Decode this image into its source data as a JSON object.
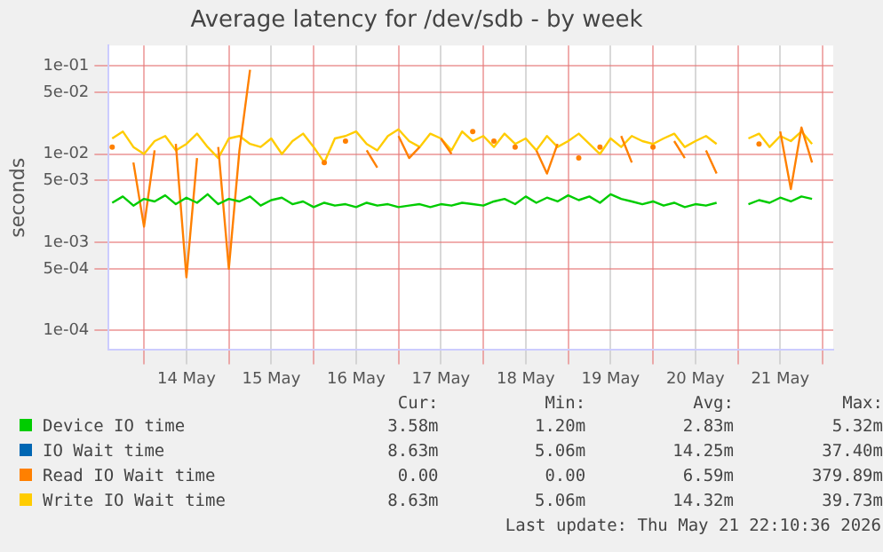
{
  "chart_data": {
    "type": "line",
    "title": "Average latency for /dev/sdb - by week",
    "ylabel": "seconds",
    "log": "y",
    "grid": true,
    "legend": "bottom",
    "marker": "none",
    "line_style": "solid",
    "x": [
      "2026-05-13T15:00",
      "2026-05-13T18:00",
      "2026-05-13T21:00",
      "2026-05-14T00:00",
      "2026-05-14T03:00",
      "2026-05-14T06:00",
      "2026-05-14T09:00",
      "2026-05-14T12:00",
      "2026-05-14T15:00",
      "2026-05-14T18:00",
      "2026-05-14T21:00",
      "2026-05-15T00:00",
      "2026-05-15T03:00",
      "2026-05-15T06:00",
      "2026-05-15T09:00",
      "2026-05-15T12:00",
      "2026-05-15T15:00",
      "2026-05-15T18:00",
      "2026-05-15T21:00",
      "2026-05-16T00:00",
      "2026-05-16T03:00",
      "2026-05-16T06:00",
      "2026-05-16T09:00",
      "2026-05-16T12:00",
      "2026-05-16T15:00",
      "2026-05-16T18:00",
      "2026-05-16T21:00",
      "2026-05-17T00:00",
      "2026-05-17T03:00",
      "2026-05-17T06:00",
      "2026-05-17T09:00",
      "2026-05-17T12:00",
      "2026-05-17T15:00",
      "2026-05-17T18:00",
      "2026-05-17T21:00",
      "2026-05-18T00:00",
      "2026-05-18T03:00",
      "2026-05-18T06:00",
      "2026-05-18T09:00",
      "2026-05-18T12:00",
      "2026-05-18T15:00",
      "2026-05-18T18:00",
      "2026-05-18T21:00",
      "2026-05-19T00:00",
      "2026-05-19T03:00",
      "2026-05-19T06:00",
      "2026-05-19T09:00",
      "2026-05-19T12:00",
      "2026-05-19T15:00",
      "2026-05-19T18:00",
      "2026-05-19T21:00",
      "2026-05-20T00:00",
      "2026-05-20T03:00",
      "2026-05-20T06:00",
      "2026-05-20T09:00",
      "2026-05-20T12:00",
      "2026-05-20T15:00",
      "2026-05-20T18:00",
      "2026-05-20T21:00",
      "2026-05-21T00:00",
      "2026-05-21T03:00",
      "2026-05-21T06:00",
      "2026-05-21T09:00",
      "2026-05-21T12:00",
      "2026-05-21T15:00",
      "2026-05-21T18:00",
      "2026-05-21T21:00"
    ],
    "xlim": [
      "2026-05-13T14:00",
      "2026-05-22T03:00"
    ],
    "xticks": [
      {
        "value": "2026-05-14T00:00",
        "label": null
      },
      {
        "value": "2026-05-14T12:00",
        "label": "14 May"
      },
      {
        "value": "2026-05-15T00:00",
        "label": null
      },
      {
        "value": "2026-05-15T12:00",
        "label": "15 May"
      },
      {
        "value": "2026-05-16T00:00",
        "label": null
      },
      {
        "value": "2026-05-16T12:00",
        "label": "16 May"
      },
      {
        "value": "2026-05-17T00:00",
        "label": null
      },
      {
        "value": "2026-05-17T12:00",
        "label": "17 May"
      },
      {
        "value": "2026-05-18T00:00",
        "label": null
      },
      {
        "value": "2026-05-18T12:00",
        "label": "18 May"
      },
      {
        "value": "2026-05-19T00:00",
        "label": null
      },
      {
        "value": "2026-05-19T12:00",
        "label": "19 May"
      },
      {
        "value": "2026-05-20T00:00",
        "label": null
      },
      {
        "value": "2026-05-20T12:00",
        "label": "20 May"
      },
      {
        "value": "2026-05-21T00:00",
        "label": null
      },
      {
        "value": "2026-05-21T12:00",
        "label": "21 May"
      },
      {
        "value": "2026-05-22T00:00",
        "label": null
      }
    ],
    "ylim": [
      6e-05,
      0.17
    ],
    "yticks": [
      {
        "value": 0.0001,
        "label": "1e-04"
      },
      {
        "value": 0.0005,
        "label": "5e-04"
      },
      {
        "value": 0.001,
        "label": "1e-03"
      },
      {
        "value": 0.005,
        "label": "5e-03"
      },
      {
        "value": 0.01,
        "label": "1e-02"
      },
      {
        "value": 0.05,
        "label": "5e-02"
      },
      {
        "value": 0.1,
        "label": "1e-01"
      }
    ],
    "series": [
      {
        "name": "Device IO time",
        "color": "#00cc00",
        "values": [
          0.0028,
          0.0033,
          0.0026,
          0.0031,
          0.0029,
          0.0034,
          0.0027,
          0.0032,
          0.0028,
          0.0035,
          0.0027,
          0.0031,
          0.0029,
          0.0033,
          0.0026,
          0.003,
          0.0032,
          0.0027,
          0.0029,
          0.0025,
          0.0028,
          0.0026,
          0.0027,
          0.0025,
          0.0028,
          0.0026,
          0.0027,
          0.0025,
          0.0026,
          0.0027,
          0.0025,
          0.0027,
          0.0026,
          0.0028,
          0.0027,
          0.0026,
          0.0029,
          0.0031,
          0.0027,
          0.0033,
          0.0028,
          0.0032,
          0.0029,
          0.0034,
          0.003,
          0.0033,
          0.0028,
          0.0035,
          0.0031,
          0.0029,
          0.0027,
          0.0029,
          0.0026,
          0.0028,
          0.0025,
          0.0027,
          0.0026,
          0.0028,
          null,
          null,
          0.0027,
          0.003,
          0.0028,
          0.0032,
          0.0029,
          0.0033,
          0.0031
        ]
      },
      {
        "name": "IO Wait time",
        "color": "#0066b3",
        "values": [
          null,
          null,
          null,
          null,
          null,
          null,
          null,
          null,
          null,
          null,
          null,
          null,
          null,
          null,
          null,
          null,
          null,
          null,
          null,
          null,
          null,
          null,
          null,
          null,
          null,
          null,
          null,
          null,
          null,
          null,
          null,
          null,
          null,
          null,
          null,
          null,
          null,
          null,
          null,
          null,
          null,
          null,
          null,
          null,
          null,
          null,
          null,
          null,
          null,
          null,
          null,
          null,
          null,
          null,
          null,
          null,
          null,
          null,
          null,
          null,
          null,
          null,
          null,
          null,
          null,
          null,
          null
        ]
      },
      {
        "name": "Read IO Wait time",
        "color": "#ff8000",
        "values": [
          0.012,
          null,
          0.008,
          0.0015,
          0.011,
          null,
          0.013,
          0.0004,
          0.009,
          null,
          0.012,
          0.0005,
          0.011,
          0.09,
          null,
          null,
          null,
          null,
          null,
          null,
          0.008,
          null,
          0.014,
          null,
          0.011,
          0.007,
          null,
          0.016,
          0.009,
          0.012,
          null,
          0.015,
          0.01,
          null,
          0.018,
          null,
          0.014,
          null,
          0.012,
          null,
          0.011,
          0.006,
          0.013,
          null,
          0.009,
          null,
          0.012,
          null,
          0.016,
          0.008,
          null,
          0.012,
          null,
          0.014,
          0.009,
          null,
          0.011,
          0.006,
          null,
          null,
          null,
          0.013,
          null,
          0.018,
          0.004,
          0.02,
          0.008
        ]
      },
      {
        "name": "Write IO Wait time",
        "color": "#ffcc00",
        "values": [
          0.015,
          0.018,
          0.012,
          0.01,
          0.014,
          0.016,
          0.011,
          0.013,
          0.017,
          0.012,
          0.009,
          0.015,
          0.016,
          0.013,
          0.012,
          0.015,
          0.01,
          0.014,
          0.017,
          0.012,
          0.008,
          0.015,
          0.016,
          0.018,
          0.013,
          0.011,
          0.016,
          0.019,
          0.014,
          0.012,
          0.017,
          0.015,
          0.011,
          0.018,
          0.014,
          0.016,
          0.012,
          0.017,
          0.013,
          0.015,
          0.011,
          0.016,
          0.012,
          0.014,
          0.017,
          0.013,
          0.01,
          0.015,
          0.012,
          0.016,
          0.014,
          0.013,
          0.015,
          0.017,
          0.012,
          0.014,
          0.016,
          0.013,
          null,
          null,
          0.015,
          0.017,
          0.012,
          0.016,
          0.014,
          0.018,
          0.013
        ]
      }
    ],
    "annotations": [
      "Cur:",
      "Min:",
      "Avg:",
      "Max:",
      "3.58m",
      "1.20m",
      "2.83m",
      "5.32m",
      "8.63m",
      "5.06m",
      "14.25m",
      "37.40m",
      "0.00",
      "0.00",
      "6.59m",
      "379.89m",
      "8.63m",
      "5.06m",
      "14.32m",
      "39.73m",
      "Last update: Thu May 21 22:10:36 2026"
    ]
  }
}
